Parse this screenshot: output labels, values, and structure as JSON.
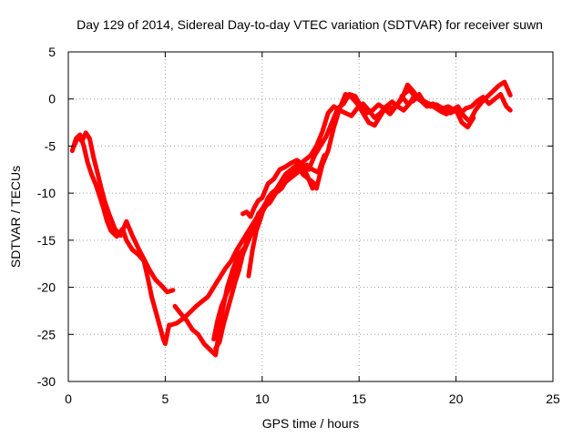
{
  "chart_data": {
    "type": "line",
    "title": "Day 129 of 2014, Sidereal Day-to-day VTEC variation (SDTVAR) for receiver suwn",
    "xlabel": "GPS time / hours",
    "ylabel": "SDTVAR / TECUs",
    "xlim": [
      0,
      25
    ],
    "ylim": [
      -30,
      5
    ],
    "xticks": [
      "0",
      "5",
      "10",
      "15",
      "20",
      "25"
    ],
    "yticks": [
      "5",
      "0",
      "-5",
      "-10",
      "-15",
      "-20",
      "-25",
      "-30"
    ],
    "grid": true,
    "color": "#ff0000",
    "series": [
      {
        "x": [
          0.2,
          0.4,
          0.6,
          0.8,
          1.0,
          1.2,
          1.4,
          1.6,
          1.8,
          2.0,
          2.2,
          2.5,
          2.8,
          3.0,
          3.3,
          3.6,
          3.9,
          4.1,
          4.3,
          4.5,
          4.7,
          4.9,
          5.0,
          5.2
        ],
        "y": [
          -5.5,
          -4.2,
          -3.8,
          -5.0,
          -6.8,
          -8.0,
          -9.0,
          -10.2,
          -11.5,
          -13.0,
          -14.0,
          -14.6,
          -13.8,
          -15.0,
          -16.0,
          -16.5,
          -17.2,
          -19.0,
          -21.0,
          -22.5,
          -24.0,
          -25.5,
          -26.0,
          -24.0
        ]
      },
      {
        "x": [
          0.3,
          0.5,
          0.7,
          0.9,
          1.1,
          1.3,
          1.5,
          1.7,
          1.9,
          2.1,
          2.4,
          2.7,
          3.0,
          3.3,
          3.6,
          3.9,
          4.2,
          4.5,
          4.8,
          5.1,
          5.4
        ],
        "y": [
          -5.0,
          -4.0,
          -4.5,
          -3.6,
          -4.2,
          -6.2,
          -7.8,
          -9.5,
          -11.0,
          -12.2,
          -13.8,
          -14.5,
          -13.0,
          -14.5,
          -15.8,
          -17.0,
          -18.2,
          -19.2,
          -19.8,
          -20.5,
          -20.3
        ]
      },
      {
        "x": [
          5.3,
          5.6,
          6.0,
          6.3,
          6.6,
          6.9,
          7.2,
          7.5,
          7.8,
          8.1,
          8.4,
          8.7,
          9.0,
          9.3,
          9.6,
          9.9,
          10.2,
          10.5,
          10.8,
          11.1,
          11.4,
          11.7,
          12.0,
          12.3,
          12.6
        ],
        "y": [
          -24.0,
          -23.8,
          -23.2,
          -22.6,
          -22.0,
          -21.5,
          -21.0,
          -20.0,
          -19.0,
          -18.0,
          -17.2,
          -16.0,
          -15.0,
          -14.0,
          -13.0,
          -12.0,
          -11.0,
          -10.0,
          -9.5,
          -9.0,
          -8.0,
          -7.2,
          -7.0,
          -8.0,
          -9.5
        ]
      },
      {
        "x": [
          5.5,
          5.8,
          6.1,
          6.4,
          6.7,
          7.0,
          7.3,
          7.6,
          7.9,
          8.2,
          8.5,
          8.8,
          9.1,
          9.4,
          9.7,
          10.0,
          10.3,
          10.6,
          10.9,
          11.2,
          11.5,
          11.8,
          12.1,
          12.4,
          12.7
        ],
        "y": [
          -22.0,
          -22.8,
          -23.5,
          -24.5,
          -25.0,
          -26.0,
          -26.6,
          -27.2,
          -23.0,
          -20.0,
          -18.0,
          -16.5,
          -15.8,
          -14.5,
          -13.0,
          -12.0,
          -11.0,
          -10.0,
          -9.0,
          -8.0,
          -7.5,
          -7.0,
          -8.0,
          -8.5,
          -9.0
        ]
      },
      {
        "x": [
          7.5,
          7.7,
          7.9,
          8.1,
          8.3,
          8.5,
          8.7,
          8.9,
          9.1,
          9.3,
          9.5,
          9.7,
          9.9,
          10.1,
          10.3,
          10.5,
          10.8,
          11.1,
          11.4,
          11.7,
          12.0,
          12.3,
          12.6,
          12.9,
          13.2
        ],
        "y": [
          -25.5,
          -23.5,
          -22.0,
          -21.0,
          -20.0,
          -19.0,
          -18.0,
          -17.0,
          -16.0,
          -15.0,
          -14.0,
          -13.0,
          -12.5,
          -11.5,
          -10.5,
          -10.0,
          -9.5,
          -9.0,
          -8.5,
          -8.0,
          -7.5,
          -7.0,
          -7.5,
          -7.8,
          -6.0
        ]
      },
      {
        "x": [
          7.6,
          7.8,
          8.0,
          8.2,
          8.4,
          8.6,
          8.8,
          9.0,
          9.2,
          9.5,
          9.8,
          10.1,
          10.4,
          10.7,
          11.0,
          11.3,
          11.6,
          11.9,
          12.2,
          12.5,
          12.8,
          13.1,
          13.4,
          13.7,
          14.0,
          14.3,
          14.6,
          14.9,
          15.2,
          15.5,
          15.8,
          16.1,
          16.4,
          16.7,
          17.0,
          17.3,
          17.6,
          17.9,
          18.2
        ],
        "y": [
          -26.5,
          -25.8,
          -24.0,
          -22.5,
          -21.0,
          -19.5,
          -18.2,
          -16.5,
          -15.2,
          -14.0,
          -12.2,
          -11.5,
          -10.5,
          -9.8,
          -9.0,
          -8.2,
          -7.5,
          -7.0,
          -6.5,
          -6.0,
          -5.0,
          -3.5,
          -1.5,
          -0.8,
          -1.2,
          -1.5,
          -1.8,
          -1.0,
          -0.5,
          -1.2,
          -2.0,
          -1.5,
          -0.8,
          -1.0,
          -0.5,
          0.5,
          1.0,
          0.2,
          -0.2
        ]
      },
      {
        "x": [
          9.0,
          9.2,
          9.4,
          9.6,
          9.8,
          10.0,
          10.3,
          10.6,
          10.9,
          11.2,
          11.5,
          11.8,
          12.1,
          12.4,
          12.7,
          13.0,
          13.3,
          13.6,
          13.9,
          14.2,
          14.5,
          14.8,
          15.1,
          15.4,
          15.7,
          16.0,
          16.3,
          16.6,
          16.9,
          17.2,
          17.5,
          17.8,
          18.1,
          18.4,
          18.7,
          19.0
        ],
        "y": [
          -12.2,
          -12.0,
          -12.5,
          -11.5,
          -10.8,
          -10.5,
          -9.0,
          -8.5,
          -7.5,
          -7.2,
          -6.8,
          -6.5,
          -7.0,
          -7.5,
          -6.0,
          -5.0,
          -4.0,
          -2.5,
          -1.0,
          -0.5,
          0.5,
          0.3,
          -0.8,
          -1.5,
          -1.2,
          -0.6,
          -1.0,
          -1.6,
          -0.8,
          0.0,
          1.5,
          0.8,
          0.0,
          -0.3,
          -0.6,
          -0.8
        ]
      },
      {
        "x": [
          9.3,
          9.5,
          9.7,
          9.9,
          10.1,
          10.4,
          10.7,
          11.0,
          11.3,
          11.6,
          11.9,
          12.2,
          12.5,
          12.8,
          13.1,
          13.4,
          13.7,
          14.0,
          14.3,
          14.6,
          14.9,
          15.2,
          15.5,
          15.8,
          16.1,
          16.4,
          16.7,
          17.0,
          17.3,
          17.6,
          17.9,
          18.2,
          18.5,
          18.8,
          19.1,
          19.4,
          19.7,
          20.0,
          20.3,
          20.6,
          20.9
        ],
        "y": [
          -18.8,
          -16.0,
          -14.0,
          -12.8,
          -11.5,
          -11.0,
          -10.0,
          -9.5,
          -8.5,
          -8.0,
          -7.5,
          -8.0,
          -8.8,
          -9.5,
          -7.0,
          -5.5,
          -3.0,
          -1.0,
          0.5,
          0.2,
          -0.5,
          -1.5,
          -2.5,
          -2.8,
          -1.8,
          -0.8,
          -0.3,
          -0.8,
          -1.2,
          -0.5,
          0.5,
          -0.2,
          -0.8,
          -0.5,
          -0.8,
          -1.0,
          -1.5,
          -1.2,
          -2.5,
          -3.0,
          -2.0
        ]
      },
      {
        "x": [
          17.2,
          17.5,
          17.8,
          18.1,
          18.4,
          18.7,
          19.0,
          19.3,
          19.6,
          19.9,
          20.2,
          20.5,
          20.8,
          21.1,
          21.4,
          21.7,
          22.0,
          22.3,
          22.6,
          22.8
        ],
        "y": [
          0.3,
          -0.5,
          -0.2,
          0.5,
          -0.5,
          -0.8,
          -0.6,
          -1.0,
          -0.8,
          -1.2,
          -1.6,
          -1.0,
          -0.8,
          -0.2,
          0.2,
          -0.5,
          0.0,
          0.5,
          -0.8,
          -1.2
        ]
      },
      {
        "x": [
          18.6,
          18.9,
          19.2,
          19.5,
          19.8,
          20.1,
          20.4,
          20.7,
          21.0,
          21.3,
          21.6,
          21.9,
          22.2,
          22.5,
          22.8
        ],
        "y": [
          -0.5,
          -0.9,
          -1.3,
          -1.6,
          -1.2,
          -0.8,
          -1.8,
          -2.4,
          -1.2,
          -0.4,
          0.2,
          0.8,
          1.4,
          1.8,
          0.4
        ]
      }
    ]
  }
}
